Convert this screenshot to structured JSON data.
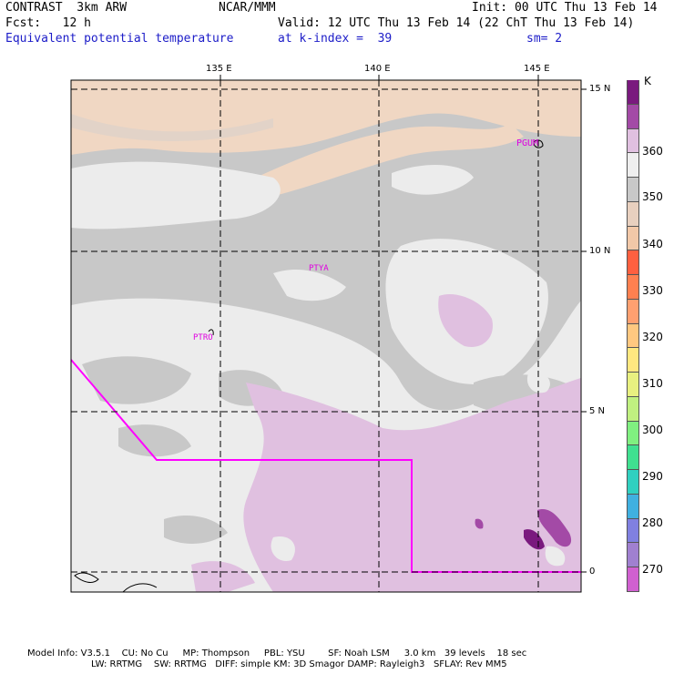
{
  "header": {
    "line1_left": "CONTRAST  3km ARW",
    "line1_center": "NCAR/MMM",
    "line1_right": "Init: 00 UTC Thu 13 Feb 14",
    "line2_left": "Fcst:   12 h",
    "line2_right": "Valid: 12 UTC Thu 13 Feb 14 (22 ChT Thu 13 Feb 14)",
    "line3_left": "Equivalent potential temperature",
    "line3_center": "at k-index =  39",
    "line3_right": "sm= 2"
  },
  "map": {
    "lon_labels": [
      "135 E",
      "140 E",
      "145 E"
    ],
    "lat_labels": [
      "15 N",
      "10 N",
      "5 N",
      "0"
    ],
    "stations": [
      "PGUM",
      "PTYA",
      "PTRO"
    ]
  },
  "colorbar": {
    "unit": "K",
    "levels": [
      "360",
      "350",
      "340",
      "330",
      "320",
      "310",
      "300",
      "290",
      "280",
      "270"
    ],
    "colors": [
      "#7a1a7e",
      "#a34aa6",
      "#e0c0e0",
      "#eeeeee",
      "#c8c8c8",
      "#e8d0bf",
      "#f2c8a8",
      "#ff6040",
      "#ff8050",
      "#ffa070",
      "#ffc880",
      "#ffe880",
      "#e8f080",
      "#c0f080",
      "#80f080",
      "#40e090",
      "#30d0c0",
      "#40b0e0",
      "#8080e0",
      "#a080d0",
      "#d060d0"
    ]
  },
  "footer": {
    "line1": "Model Info: V3.5.1    CU: No Cu     MP: Thompson     PBL: YSU        SF: Noah LSM     3.0 km   39 levels    18 sec",
    "line2": "LW: RRTMG    SW: RRTMG   DIFF: simple KM: 3D Smagor DAMP: Rayleigh3   SFLAY: Rev MM5"
  }
}
